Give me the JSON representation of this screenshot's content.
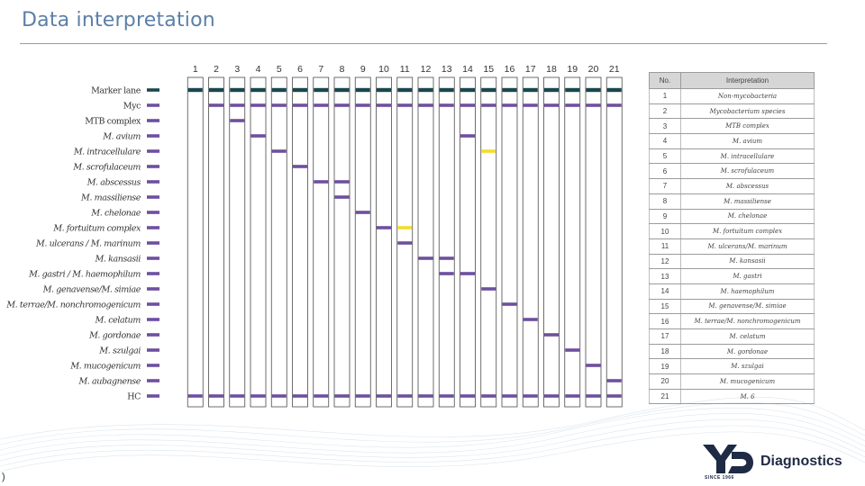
{
  "title": "Data interpretation",
  "lanes": [
    "1",
    "2",
    "3",
    "4",
    "5",
    "6",
    "7",
    "8",
    "9",
    "10",
    "11",
    "12",
    "13",
    "14",
    "15",
    "16",
    "17",
    "18",
    "19",
    "20",
    "21"
  ],
  "rows": [
    "Marker lane",
    "Myc",
    "MTB complex",
    "M. avium",
    "M. intracellulare",
    "M. scrofulaceum",
    "M. abscessus",
    "M. massiliense",
    "M. chelonae",
    "M. fortuitum complex",
    "M. ulcerans / M. marinum",
    "M. kansasii",
    "M. gastri / M. haemophilum",
    "M. genavense/M. simiae",
    "M. terrae/M. nonchromogenicum",
    "M. celatum",
    "M. gordonae",
    "M. szulgai",
    "M. mucogenicum",
    "M. aubagnense",
    "HC"
  ],
  "band_colors": {
    "marker": "#1b4650",
    "purple": "#6e4f9f",
    "yellow": "#f2dc2e"
  },
  "bands": [
    {
      "row": 1,
      "lanes": [
        2,
        3,
        4,
        5,
        6,
        7,
        8,
        9,
        10,
        11,
        12,
        13,
        14,
        15,
        16,
        17,
        18,
        19,
        20,
        21
      ],
      "color": "purple"
    },
    {
      "row": 2,
      "lanes": [
        3
      ],
      "color": "purple"
    },
    {
      "row": 3,
      "lanes": [
        4,
        14
      ],
      "color": "purple"
    },
    {
      "row": 4,
      "lanes": [
        5
      ],
      "color": "purple"
    },
    {
      "row": 4,
      "lanes": [
        15
      ],
      "color": "yellow"
    },
    {
      "row": 5,
      "lanes": [
        6
      ],
      "color": "purple"
    },
    {
      "row": 6,
      "lanes": [
        7,
        8
      ],
      "color": "purple"
    },
    {
      "row": 7,
      "lanes": [
        8
      ],
      "color": "purple"
    },
    {
      "row": 8,
      "lanes": [
        9
      ],
      "color": "purple"
    },
    {
      "row": 9,
      "lanes": [
        10
      ],
      "color": "purple"
    },
    {
      "row": 9,
      "lanes": [
        11
      ],
      "color": "yellow"
    },
    {
      "row": 10,
      "lanes": [
        11
      ],
      "color": "purple"
    },
    {
      "row": 11,
      "lanes": [
        12,
        13
      ],
      "color": "purple"
    },
    {
      "row": 12,
      "lanes": [
        13,
        14
      ],
      "color": "purple"
    },
    {
      "row": 13,
      "lanes": [
        15
      ],
      "color": "purple"
    },
    {
      "row": 14,
      "lanes": [
        16
      ],
      "color": "purple"
    },
    {
      "row": 15,
      "lanes": [
        17
      ],
      "color": "purple"
    },
    {
      "row": 16,
      "lanes": [
        18
      ],
      "color": "purple"
    },
    {
      "row": 17,
      "lanes": [
        19
      ],
      "color": "purple"
    },
    {
      "row": 18,
      "lanes": [
        20
      ],
      "color": "purple"
    },
    {
      "row": 19,
      "lanes": [
        21
      ],
      "color": "purple"
    }
  ],
  "table": {
    "headers": [
      "No.",
      "Interpretation"
    ],
    "rows": [
      {
        "no": "1",
        "text": "Non-mycobacteria"
      },
      {
        "no": "2",
        "text": "Mycobacterium species"
      },
      {
        "no": "3",
        "text": "MTB complex"
      },
      {
        "no": "4",
        "text": "M. avium"
      },
      {
        "no": "5",
        "text": "M. intracellulare"
      },
      {
        "no": "6",
        "text": "M. scrofulaceum"
      },
      {
        "no": "7",
        "text": "M. abscessus"
      },
      {
        "no": "8",
        "text": "M. massiliense"
      },
      {
        "no": "9",
        "text": "M. chelonae"
      },
      {
        "no": "10",
        "text": "M. fortuitum complex"
      },
      {
        "no": "11",
        "text": "M. ulcerans/M. marinum"
      },
      {
        "no": "12",
        "text": "M. kansasii"
      },
      {
        "no": "13",
        "text": "M. gastri"
      },
      {
        "no": "14",
        "text": "M. haemophilum"
      },
      {
        "no": "15",
        "text": "M. genavense/M. simiae"
      },
      {
        "no": "16",
        "text": "M. terrae/M. nonchromogenicum"
      },
      {
        "no": "17",
        "text": "M. celatum"
      },
      {
        "no": "18",
        "text": "M. gordonae"
      },
      {
        "no": "19",
        "text": "M. szulgai"
      },
      {
        "no": "20",
        "text": "M. mucogenicum"
      },
      {
        "no": "21",
        "text": "M.      6"
      }
    ]
  },
  "page_number": ")",
  "logo": {
    "brand": "Diagnostics",
    "since": "SINCE 1966",
    "mark": "YD"
  }
}
